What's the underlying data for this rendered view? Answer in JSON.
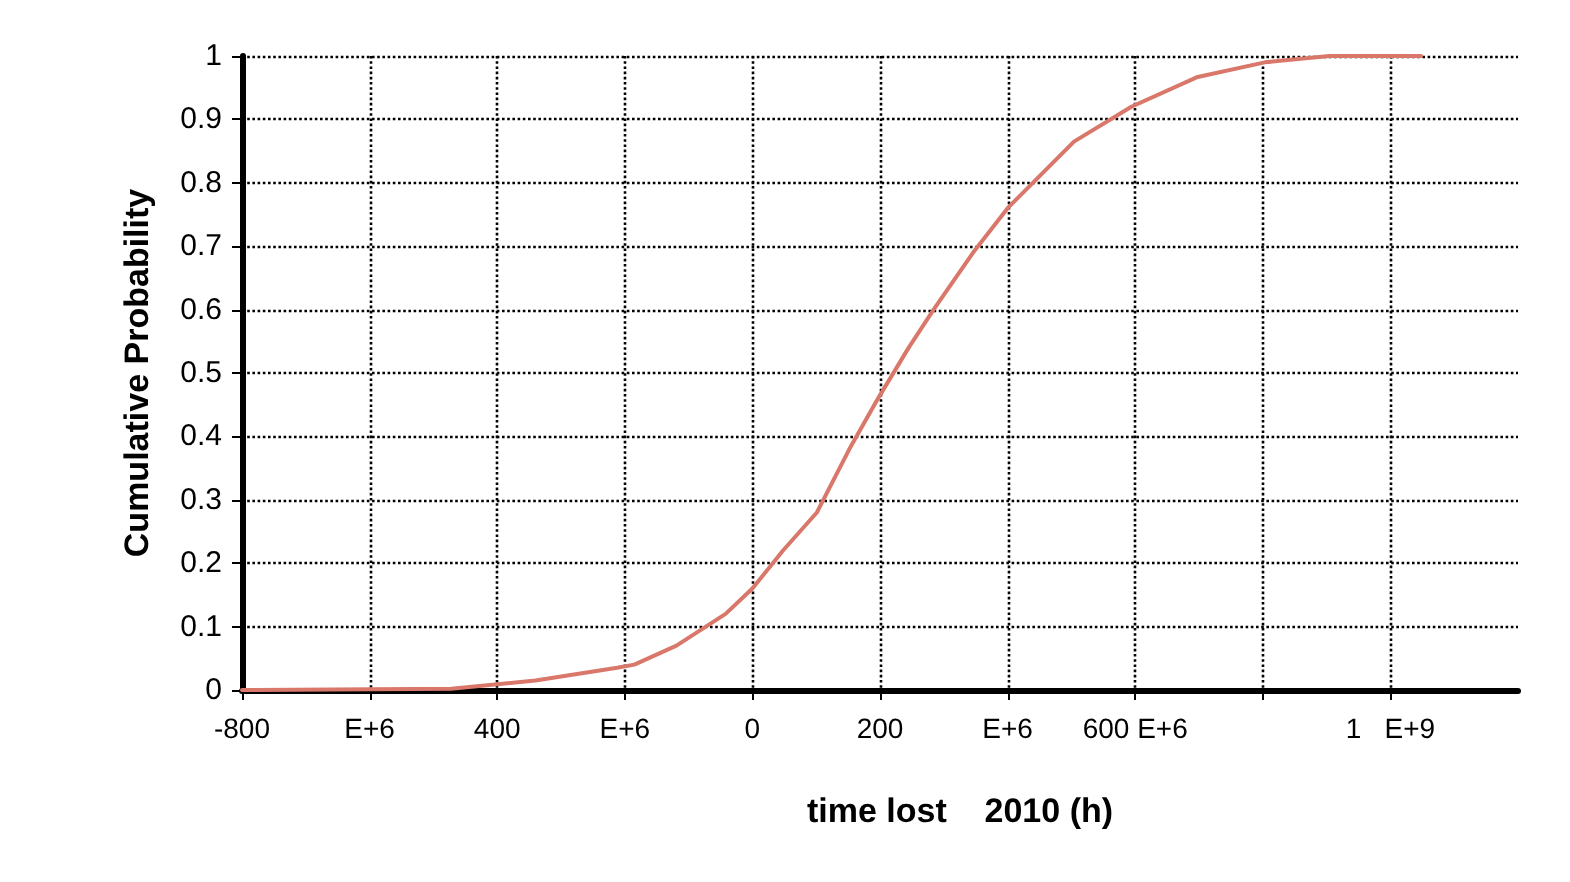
{
  "chart_data": {
    "type": "line",
    "xlabel": "time lost    2010 (h)",
    "ylabel": "Cumulative Probability",
    "series": [
      {
        "color": "#d9786a",
        "x": [
          -800,
          -472,
          -340,
          -212,
          -185,
          -119,
          -42,
          0,
          48,
          101,
          152,
          197,
          245,
          284,
          346,
          400,
          504,
          594,
          698,
          803,
          904,
          1048
        ],
        "values": [
          0,
          0.002,
          0.015,
          0.035,
          0.04,
          0.07,
          0.12,
          0.16,
          0.22,
          0.28,
          0.38,
          0.46,
          0.54,
          0.6,
          0.69,
          0.76,
          0.865,
          0.92,
          0.967,
          0.99,
          1,
          1
        ]
      }
    ],
    "xlim": [
      -800,
      1200
    ],
    "xticks": [
      {
        "value": -800,
        "label": "-800"
      },
      {
        "value": -600,
        "label": "E+6"
      },
      {
        "value": -400,
        "label": "400"
      },
      {
        "value": -200,
        "label": "E+6"
      },
      0,
      200,
      {
        "value": 400,
        "label": "E+6"
      },
      {
        "value": 600,
        "label": "600 E+6"
      },
      {
        "value": 800,
        "label": null
      },
      {
        "value": 1000,
        "label": "1   E+9"
      }
    ],
    "ylim": [
      0,
      1
    ],
    "yticks": [
      0,
      0.1,
      0.2,
      0.3,
      0.4,
      0.5,
      0.6,
      0.7,
      0.8,
      0.9,
      1
    ],
    "grid": true,
    "marker": "none",
    "line_style": "solid"
  }
}
